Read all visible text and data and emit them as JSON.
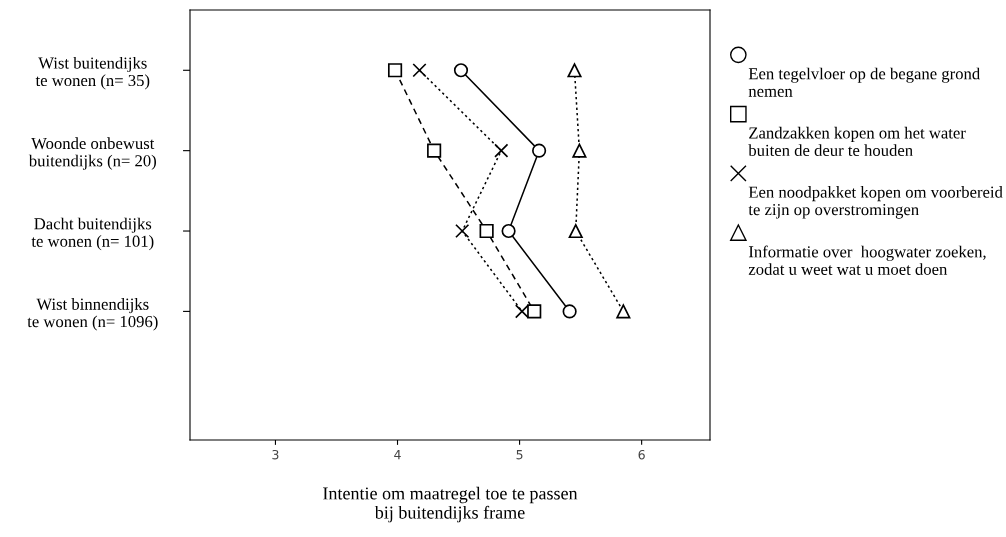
{
  "chart_data": {
    "type": "line",
    "orientation": "horizontal",
    "xlabel": "Intentie om maatregel toe te passen\nbij buitendijks frame",
    "categories": [
      "Wist buitendijks\nte wonen (n= 35)",
      "Woonde onbewust\nbuitendijks (n= 20)",
      "Dacht buitendijks\nte wonen (n= 101)",
      "Wist binnendijks\nte wonen (n= 1096)"
    ],
    "xlim": [
      2.3,
      6.56
    ],
    "xticks": [
      3,
      4,
      5,
      6
    ],
    "grid": false,
    "legend": "right",
    "series": [
      {
        "name": "Een tegelvloer op de begane grond\nnemen",
        "color": "#000000",
        "marker": "circle",
        "line_style": "solid",
        "values": [
          4.52,
          5.16,
          4.91,
          5.41
        ]
      },
      {
        "name": "Zandzakken kopen om het water\nbuiten de deur te houden",
        "color": "#000000",
        "marker": "square",
        "line_style": "dashed",
        "values": [
          3.98,
          4.3,
          4.73,
          5.12
        ]
      },
      {
        "name": "Een noodpakket kopen om voorbereid\nte zijn op overstromingen",
        "color": "#000000",
        "marker": "cross",
        "line_style": "dotted",
        "values": [
          4.18,
          4.85,
          4.53,
          5.02
        ]
      },
      {
        "name": "Informatie over  hoogwater zoeken,\nzodat u weet wat u moet doen",
        "color": "#000000",
        "marker": "triangle",
        "line_style": "dotted",
        "values": [
          5.45,
          5.49,
          5.46,
          5.85
        ]
      }
    ]
  }
}
